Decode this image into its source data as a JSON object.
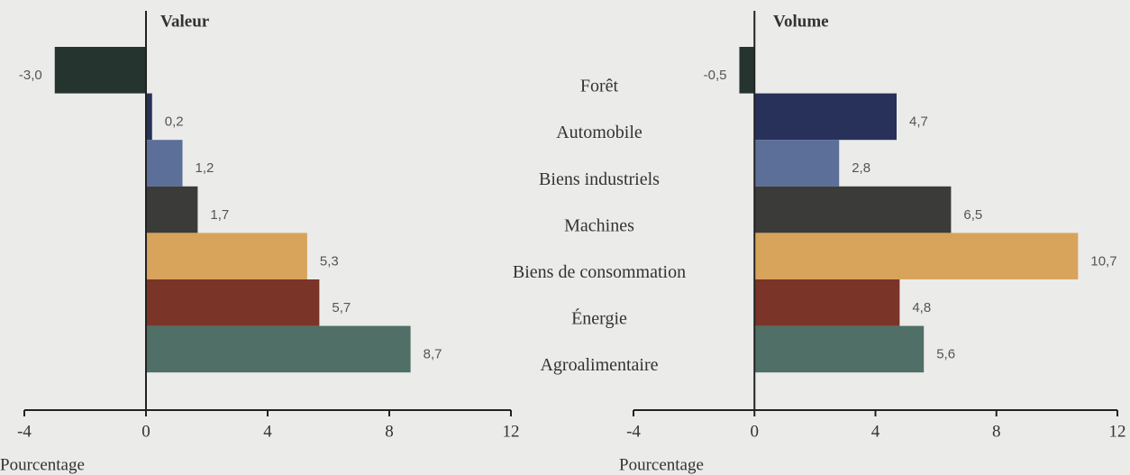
{
  "chart_data": [
    {
      "type": "bar",
      "orientation": "horizontal",
      "title": "Valeur",
      "xlabel": "Pourcentage",
      "categories": [
        "Forêt",
        "Automobile",
        "Biens industriels",
        "Machines",
        "Biens de consommation",
        "Énergie",
        "Agroalimentaire"
      ],
      "values": [
        -3.0,
        0.2,
        1.2,
        1.7,
        5.3,
        5.7,
        8.7
      ],
      "value_labels": [
        "-3,0",
        "0,2",
        "1,2",
        "1,7",
        "5,3",
        "5,7",
        "8,7"
      ],
      "colors": [
        "#26342f",
        "#27315a",
        "#5b6f99",
        "#3b3b39",
        "#d8a45c",
        "#7a3428",
        "#4f6f67"
      ],
      "xlim": [
        -4,
        12
      ],
      "xticks": [
        -4,
        0,
        4,
        8,
        12
      ]
    },
    {
      "type": "bar",
      "orientation": "horizontal",
      "title": "Volume",
      "xlabel": "Pourcentage",
      "values": [
        -0.5,
        4.7,
        2.8,
        6.5,
        10.7,
        4.8,
        5.6
      ],
      "value_labels": [
        "-0,5",
        "4,7",
        "2,8",
        "6,5",
        "10,7",
        "4,8",
        "5,6"
      ],
      "colors": [
        "#26342f",
        "#27315a",
        "#5b6f99",
        "#3b3b39",
        "#d8a45c",
        "#7a3428",
        "#4f6f67"
      ],
      "xlim": [
        -4,
        12
      ],
      "xticks": [
        -4,
        0,
        4,
        8,
        12
      ]
    }
  ]
}
